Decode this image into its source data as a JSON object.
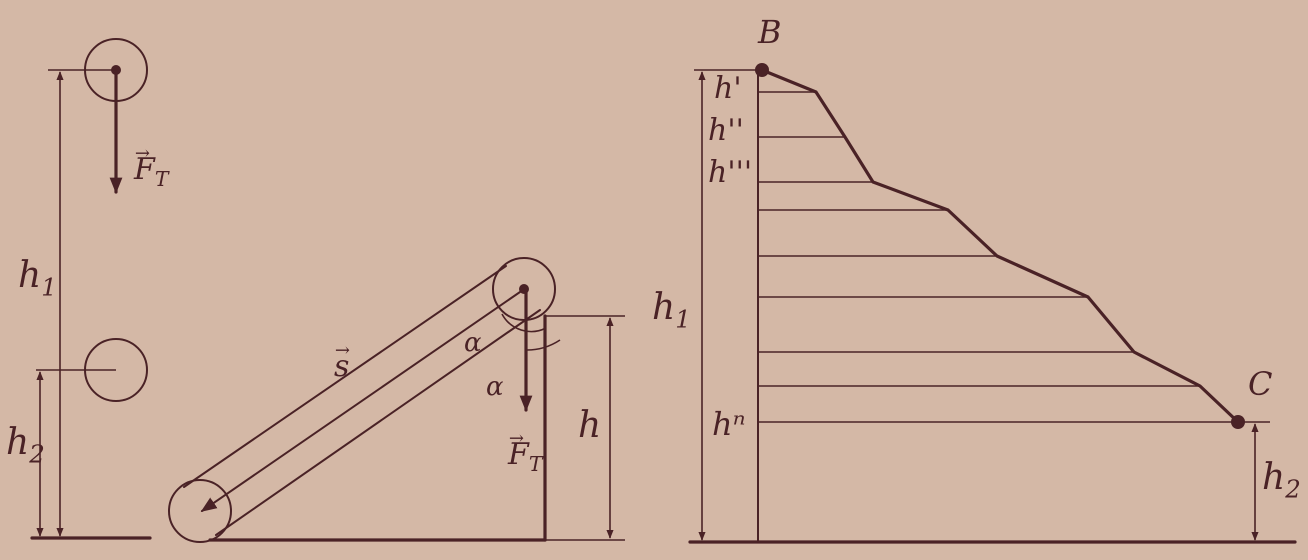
{
  "fig1": {
    "force": {
      "letter": "F",
      "sub": "T"
    },
    "h1": {
      "letter": "h",
      "sub": "1"
    },
    "h2": {
      "letter": "h",
      "sub": "2"
    }
  },
  "fig2": {
    "s": "s",
    "alpha_top": "α",
    "alpha_side": "α",
    "force": {
      "letter": "F",
      "sub": "T"
    },
    "h": "h"
  },
  "fig3": {
    "point_b": "B",
    "point_c": "C",
    "h_prime": "h'",
    "h_double": "h''",
    "h_triple": "h'''",
    "h_n": "hⁿ",
    "h1": {
      "letter": "h",
      "sub": "1"
    },
    "h2": {
      "letter": "h",
      "sub": "2"
    }
  }
}
